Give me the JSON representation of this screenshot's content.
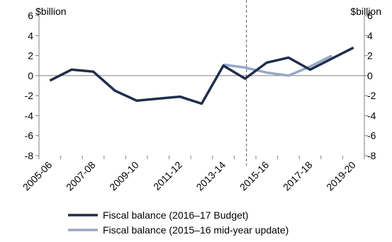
{
  "chart_data": {
    "type": "line",
    "title": "",
    "xlabel": "",
    "ylabel_left": "$billion",
    "ylabel_right": "$billion",
    "ylim": [
      -8,
      6
    ],
    "yticks": [
      6,
      4,
      2,
      0,
      -2,
      -4,
      -6,
      -8
    ],
    "x": [
      "2005-06",
      "2006-07",
      "2007-08",
      "2008-09",
      "2009-10",
      "2010-11",
      "2011-12",
      "2012-13",
      "2013-14",
      "2014-15",
      "2015-16",
      "2016-17",
      "2017-18",
      "2018-19",
      "2019-20"
    ],
    "xtick_labels": [
      "2005-06",
      "2007-08",
      "2009-10",
      "2011-12",
      "2013-14",
      "2015-16",
      "2017-18",
      "2019-20"
    ],
    "divider_at": "2014-15",
    "grid": false,
    "legend_position": "bottom",
    "series": [
      {
        "name": "Fiscal balance (2016–17 Budget)",
        "color": "#1f2e4c",
        "values": [
          -0.5,
          0.6,
          0.4,
          -1.5,
          -2.5,
          -2.3,
          -2.1,
          -2.8,
          1.0,
          -0.3,
          1.3,
          1.8,
          0.6,
          1.7,
          2.8
        ]
      },
      {
        "name": "Fiscal balance (2015–16 mid-year update)",
        "color": "#96a8c6",
        "values": [
          null,
          null,
          null,
          null,
          null,
          null,
          null,
          null,
          1.1,
          0.8,
          0.3,
          0.0,
          0.9,
          2.0,
          null
        ]
      }
    ]
  }
}
